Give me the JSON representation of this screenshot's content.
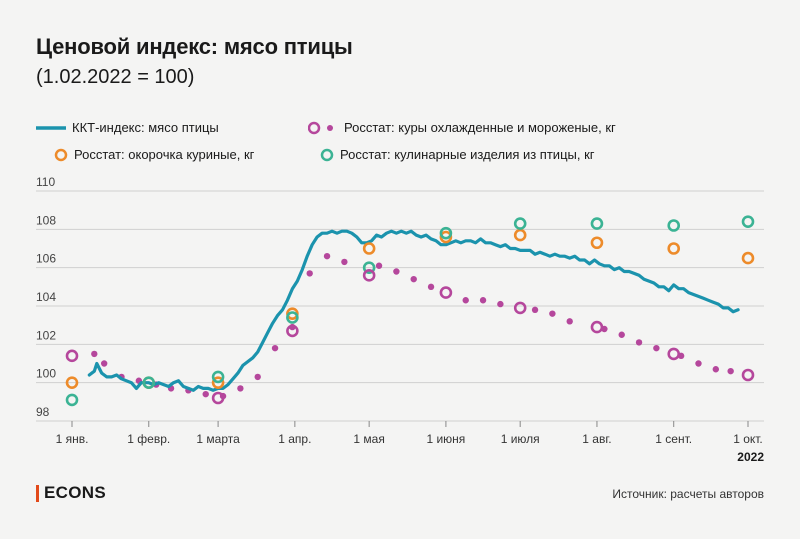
{
  "header": {
    "title": "Ценовой индекс: мясо птицы",
    "subtitle": "(1.02.2022 = 100)"
  },
  "footer": {
    "brand": "ECONS",
    "source": "Источник: расчеты авторов"
  },
  "colors": {
    "kkt": "#1b93ad",
    "kury": "#b5479c",
    "okorochka": "#ed8b2a",
    "kulinarnye": "#3bb394",
    "grid": "#cfcfcf",
    "background": "#f4f4f3"
  },
  "chart_data": {
    "type": "line",
    "ylim": [
      98,
      110
    ],
    "yticks": [
      98,
      100,
      102,
      104,
      106,
      108,
      110
    ],
    "xlim": [
      0,
      273
    ],
    "xticks": [
      {
        "day": 0,
        "label": "1 янв."
      },
      {
        "day": 31,
        "label": "1 февр."
      },
      {
        "day": 59,
        "label": "1 марта"
      },
      {
        "day": 90,
        "label": "1 апр."
      },
      {
        "day": 120,
        "label": "1 мая"
      },
      {
        "day": 151,
        "label": "1 июня"
      },
      {
        "day": 181,
        "label": "1 июля"
      },
      {
        "day": 212,
        "label": "1 авг."
      },
      {
        "day": 243,
        "label": "1 сент."
      },
      {
        "day": 273,
        "label": "1 окт."
      }
    ],
    "year_label": "2022",
    "grid": true,
    "legend_position": "top",
    "series": [
      {
        "name": "ККТ-индекс: мясо птицы",
        "kind": "line",
        "points": [
          [
            7,
            100.4
          ],
          [
            9,
            100.6
          ],
          [
            10,
            101.0
          ],
          [
            12,
            100.5
          ],
          [
            14,
            100.3
          ],
          [
            16,
            100.3
          ],
          [
            18,
            100.4
          ],
          [
            20,
            100.2
          ],
          [
            22,
            100.1
          ],
          [
            24,
            100.0
          ],
          [
            26,
            99.7
          ],
          [
            28,
            100.0
          ],
          [
            31,
            100.0
          ],
          [
            33,
            99.9
          ],
          [
            35,
            100.0
          ],
          [
            37,
            99.9
          ],
          [
            39,
            99.8
          ],
          [
            41,
            100.0
          ],
          [
            43,
            100.1
          ],
          [
            45,
            99.8
          ],
          [
            47,
            99.7
          ],
          [
            49,
            99.6
          ],
          [
            51,
            99.8
          ],
          [
            53,
            99.7
          ],
          [
            55,
            99.7
          ],
          [
            57,
            99.6
          ],
          [
            59,
            99.7
          ],
          [
            61,
            99.7
          ],
          [
            63,
            99.9
          ],
          [
            65,
            100.2
          ],
          [
            67,
            100.5
          ],
          [
            69,
            100.9
          ],
          [
            71,
            101.1
          ],
          [
            73,
            101.3
          ],
          [
            75,
            101.6
          ],
          [
            77,
            102.1
          ],
          [
            79,
            102.6
          ],
          [
            81,
            103.1
          ],
          [
            83,
            103.5
          ],
          [
            85,
            103.8
          ],
          [
            87,
            104.3
          ],
          [
            89,
            104.9
          ],
          [
            91,
            105.3
          ],
          [
            93,
            105.9
          ],
          [
            95,
            106.6
          ],
          [
            97,
            107.2
          ],
          [
            99,
            107.6
          ],
          [
            101,
            107.8
          ],
          [
            103,
            107.8
          ],
          [
            105,
            107.9
          ],
          [
            107,
            107.8
          ],
          [
            109,
            107.9
          ],
          [
            111,
            107.9
          ],
          [
            113,
            107.8
          ],
          [
            115,
            107.6
          ],
          [
            117,
            107.3
          ],
          [
            119,
            107.3
          ],
          [
            121,
            107.4
          ],
          [
            123,
            107.7
          ],
          [
            125,
            107.6
          ],
          [
            127,
            107.8
          ],
          [
            129,
            107.9
          ],
          [
            131,
            107.8
          ],
          [
            133,
            107.9
          ],
          [
            135,
            107.8
          ],
          [
            137,
            107.9
          ],
          [
            139,
            107.7
          ],
          [
            141,
            107.6
          ],
          [
            143,
            107.7
          ],
          [
            145,
            107.5
          ],
          [
            147,
            107.4
          ],
          [
            149,
            107.2
          ],
          [
            151,
            107.2
          ],
          [
            153,
            107.3
          ],
          [
            155,
            107.4
          ],
          [
            157,
            107.3
          ],
          [
            159,
            107.4
          ],
          [
            161,
            107.4
          ],
          [
            163,
            107.3
          ],
          [
            165,
            107.5
          ],
          [
            167,
            107.3
          ],
          [
            169,
            107.3
          ],
          [
            171,
            107.2
          ],
          [
            173,
            107.1
          ],
          [
            175,
            107.2
          ],
          [
            177,
            107.0
          ],
          [
            179,
            107.0
          ],
          [
            181,
            106.9
          ],
          [
            183,
            106.9
          ],
          [
            185,
            106.9
          ],
          [
            187,
            106.7
          ],
          [
            189,
            106.8
          ],
          [
            191,
            106.7
          ],
          [
            193,
            106.6
          ],
          [
            195,
            106.7
          ],
          [
            197,
            106.6
          ],
          [
            199,
            106.6
          ],
          [
            201,
            106.5
          ],
          [
            203,
            106.6
          ],
          [
            205,
            106.4
          ],
          [
            207,
            106.4
          ],
          [
            209,
            106.2
          ],
          [
            211,
            106.4
          ],
          [
            213,
            106.2
          ],
          [
            215,
            106.1
          ],
          [
            217,
            106.1
          ],
          [
            219,
            105.9
          ],
          [
            221,
            106.0
          ],
          [
            223,
            105.8
          ],
          [
            225,
            105.8
          ],
          [
            227,
            105.7
          ],
          [
            229,
            105.6
          ],
          [
            231,
            105.4
          ],
          [
            233,
            105.3
          ],
          [
            235,
            105.2
          ],
          [
            237,
            105.0
          ],
          [
            239,
            105.0
          ],
          [
            241,
            104.8
          ],
          [
            243,
            105.1
          ],
          [
            245,
            104.9
          ],
          [
            247,
            104.9
          ],
          [
            249,
            104.7
          ],
          [
            251,
            104.6
          ],
          [
            253,
            104.5
          ],
          [
            255,
            104.4
          ],
          [
            257,
            104.3
          ],
          [
            259,
            104.2
          ],
          [
            261,
            104.1
          ],
          [
            263,
            103.9
          ],
          [
            265,
            103.9
          ],
          [
            267,
            103.7
          ],
          [
            269,
            103.8
          ]
        ]
      },
      {
        "name": "Росстат: куры охлажденные и мороженые, кг",
        "kind": "dots",
        "points": [
          [
            9,
            101.5
          ],
          [
            13,
            101.0
          ],
          [
            20,
            100.3
          ],
          [
            27,
            100.1
          ],
          [
            34,
            99.9
          ],
          [
            40,
            99.7
          ],
          [
            47,
            99.6
          ],
          [
            54,
            99.4
          ],
          [
            61,
            99.3
          ],
          [
            68,
            99.7
          ],
          [
            75,
            100.3
          ],
          [
            82,
            101.8
          ],
          [
            89,
            102.9
          ],
          [
            96,
            105.7
          ],
          [
            103,
            106.6
          ],
          [
            110,
            106.3
          ],
          [
            124,
            106.1
          ],
          [
            131,
            105.8
          ],
          [
            138,
            105.4
          ],
          [
            145,
            105.0
          ],
          [
            159,
            104.3
          ],
          [
            166,
            104.3
          ],
          [
            173,
            104.1
          ],
          [
            187,
            103.8
          ],
          [
            194,
            103.6
          ],
          [
            201,
            103.2
          ],
          [
            215,
            102.8
          ],
          [
            222,
            102.5
          ],
          [
            229,
            102.1
          ],
          [
            236,
            101.8
          ],
          [
            246,
            101.4
          ],
          [
            253,
            101.0
          ],
          [
            260,
            100.7
          ],
          [
            266,
            100.6
          ]
        ]
      },
      {
        "name": "Росстат: куры охлажденные и мороженые, кг",
        "kind": "rings",
        "points": [
          [
            0,
            101.4
          ],
          [
            59,
            99.2
          ],
          [
            89,
            102.7
          ],
          [
            120,
            105.6
          ],
          [
            151,
            104.7
          ],
          [
            181,
            103.9
          ],
          [
            212,
            102.9
          ],
          [
            243,
            101.5
          ],
          [
            273,
            100.4
          ]
        ]
      },
      {
        "name": "Росстат: окорочка куриные, кг",
        "kind": "rings",
        "points": [
          [
            0,
            100.0
          ],
          [
            31,
            100.0
          ],
          [
            59,
            100.0
          ],
          [
            89,
            103.6
          ],
          [
            120,
            107.0
          ],
          [
            151,
            107.6
          ],
          [
            181,
            107.7
          ],
          [
            212,
            107.3
          ],
          [
            243,
            107.0
          ],
          [
            273,
            106.5
          ]
        ]
      },
      {
        "name": "Росстат: кулинарные изделия из птицы, кг",
        "kind": "rings",
        "points": [
          [
            0,
            99.1
          ],
          [
            31,
            100.0
          ],
          [
            59,
            100.3
          ],
          [
            89,
            103.4
          ],
          [
            120,
            106.0
          ],
          [
            151,
            107.8
          ],
          [
            181,
            108.3
          ],
          [
            212,
            108.3
          ],
          [
            243,
            108.2
          ],
          [
            273,
            108.4
          ]
        ]
      }
    ]
  }
}
